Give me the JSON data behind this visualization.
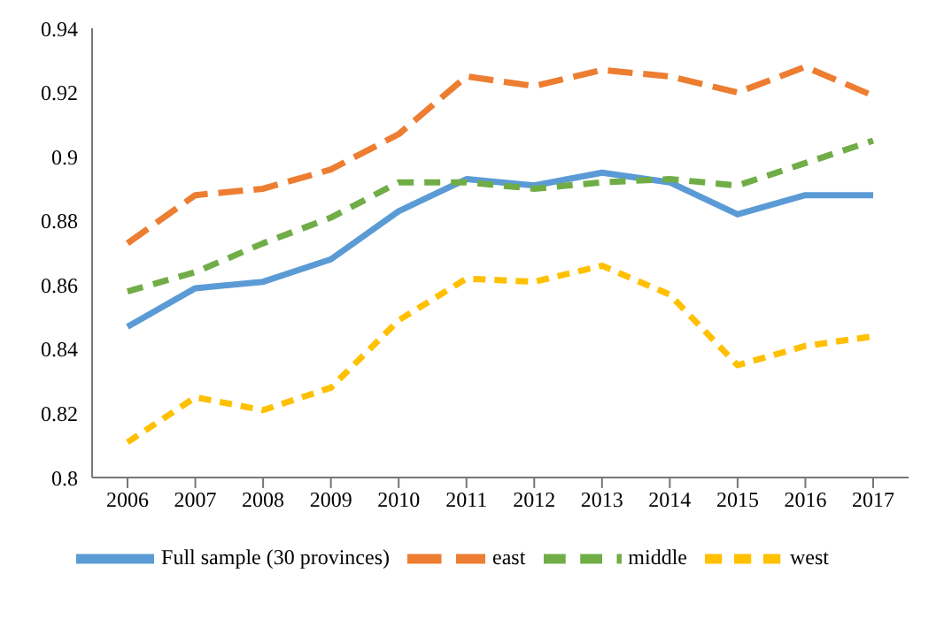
{
  "chart_data": {
    "type": "line",
    "categories": [
      "2006",
      "2007",
      "2008",
      "2009",
      "2010",
      "2011",
      "2012",
      "2013",
      "2014",
      "2015",
      "2016",
      "2017"
    ],
    "series": [
      {
        "name": "Full sample (30 provinces)",
        "color": "#5b9bd5",
        "line_style": "solid",
        "values": [
          0.847,
          0.859,
          0.861,
          0.868,
          0.883,
          0.893,
          0.891,
          0.895,
          0.892,
          0.882,
          0.888,
          0.888
        ]
      },
      {
        "name": "east",
        "color": "#ed7d31",
        "line_style": "dashed",
        "values": [
          0.873,
          0.888,
          0.89,
          0.896,
          0.907,
          0.925,
          0.922,
          0.927,
          0.925,
          0.92,
          0.928,
          0.919
        ]
      },
      {
        "name": "middle",
        "color": "#70ad47",
        "line_style": "dashed",
        "values": [
          0.858,
          0.864,
          0.873,
          0.881,
          0.892,
          0.892,
          0.89,
          0.892,
          0.893,
          0.891,
          0.898,
          0.905
        ]
      },
      {
        "name": "west",
        "color": "#ffc000",
        "line_style": "dotted",
        "values": [
          0.811,
          0.825,
          0.821,
          0.828,
          0.849,
          0.862,
          0.861,
          0.866,
          0.857,
          0.835,
          0.841,
          0.844
        ]
      }
    ],
    "ylim": [
      0.8,
      0.94
    ],
    "yticks": [
      0.8,
      0.82,
      0.84,
      0.86,
      0.88,
      0.9,
      0.92,
      0.94
    ],
    "grid": false,
    "legend": "bottom",
    "marker": "none"
  }
}
